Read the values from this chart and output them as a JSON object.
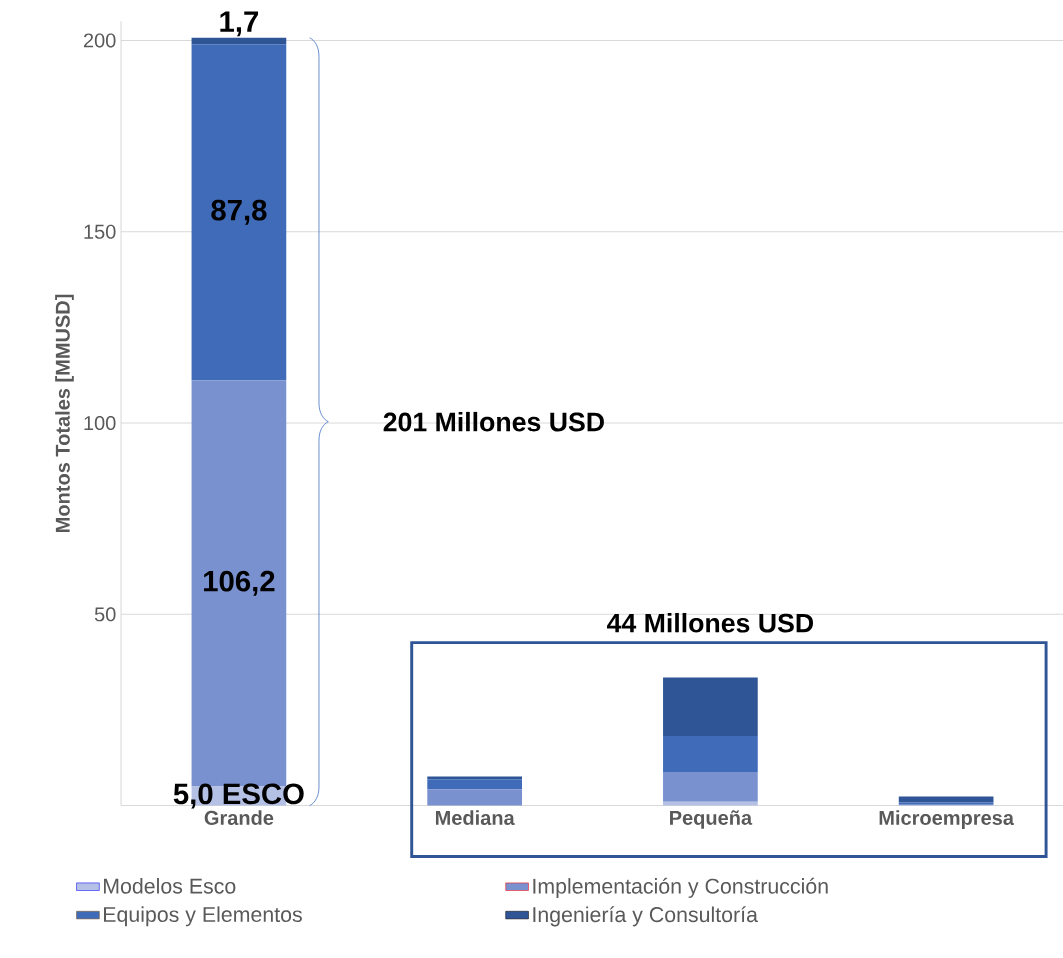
{
  "chart_data": {
    "type": "bar",
    "stacked": true,
    "ylabel": "Montos Totales  [MMUSD]",
    "categories": [
      "Grande",
      "Mediana",
      "Pequeña",
      "Microempresa"
    ],
    "series": [
      {
        "name": "Modelos Esco",
        "color": "#b4c0e4",
        "values": [
          5.0,
          null,
          1.0,
          0.1
        ],
        "value_labels": [
          "5,0 ESCO",
          null,
          null,
          null
        ]
      },
      {
        "name": "Implementación y Construcción",
        "color": "#7a91d0",
        "values": [
          106.2,
          4.3,
          7.8,
          0.3
        ],
        "value_labels": [
          "106,2",
          null,
          null,
          null
        ]
      },
      {
        "name": "Equipos y Elementos",
        "color": "#3f6bb8",
        "values": [
          87.8,
          2.6,
          9.4,
          0.4
        ],
        "value_labels": [
          "87,8",
          null,
          null,
          null
        ]
      },
      {
        "name": "Ingeniería y Consultoría",
        "color": "#2f5597",
        "values": [
          1.7,
          0.7,
          15.3,
          1.6
        ],
        "value_labels": [
          "1,7",
          null,
          null,
          null
        ]
      }
    ],
    "ylim": [
      0,
      205
    ],
    "yticks": [
      {
        "value": 0,
        "label": null
      },
      50,
      100,
      150,
      200
    ],
    "grid": "y",
    "legend": "bottom",
    "annotations": [
      "201 Millones USD",
      "44 Millones USD"
    ]
  }
}
